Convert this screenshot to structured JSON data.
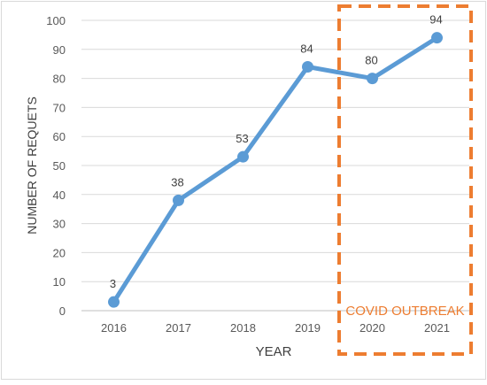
{
  "chart_data": {
    "type": "line",
    "categories": [
      "2016",
      "2017",
      "2018",
      "2019",
      "2020",
      "2021"
    ],
    "series": [
      {
        "values": [
          3,
          38,
          53,
          84,
          80,
          94
        ],
        "color": "#5b9bd5"
      }
    ],
    "data_labels": [
      "3",
      "38",
      "53",
      "84",
      "80",
      "94"
    ],
    "xlabel": "YEAR",
    "ylabel": "NUMBER OF REQUETS",
    "ylim": [
      0,
      100
    ],
    "yticks": [
      0,
      10,
      20,
      30,
      40,
      50,
      60,
      70,
      80,
      90,
      100
    ],
    "ytick_labels": [
      "0",
      "10",
      "20",
      "30",
      "40",
      "50",
      "60",
      "70",
      "80",
      "90",
      "100"
    ],
    "grid": true,
    "legend": "none",
    "annotation": {
      "text": "COVID OUTBREAK",
      "color": "#ed7d31",
      "covers_categories": [
        "2020",
        "2021"
      ]
    }
  }
}
